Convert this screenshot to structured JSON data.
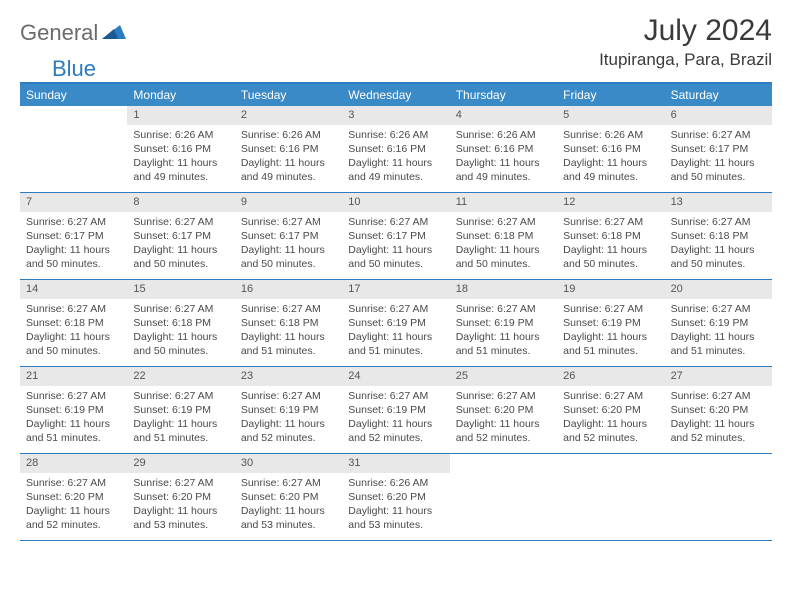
{
  "logo": {
    "text1": "General",
    "text2": "Blue"
  },
  "title": "July 2024",
  "location": "Itupiranga, Para, Brazil",
  "colors": {
    "header_bg": "#3a8ac7",
    "border": "#2d7bc0",
    "daynum_bg": "#e8e8e8",
    "text": "#3f3f3f"
  },
  "weekdays": [
    "Sunday",
    "Monday",
    "Tuesday",
    "Wednesday",
    "Thursday",
    "Friday",
    "Saturday"
  ],
  "weeks": [
    [
      null,
      {
        "n": "1",
        "sr": "Sunrise: 6:26 AM",
        "ss": "Sunset: 6:16 PM",
        "dl": "Daylight: 11 hours and 49 minutes."
      },
      {
        "n": "2",
        "sr": "Sunrise: 6:26 AM",
        "ss": "Sunset: 6:16 PM",
        "dl": "Daylight: 11 hours and 49 minutes."
      },
      {
        "n": "3",
        "sr": "Sunrise: 6:26 AM",
        "ss": "Sunset: 6:16 PM",
        "dl": "Daylight: 11 hours and 49 minutes."
      },
      {
        "n": "4",
        "sr": "Sunrise: 6:26 AM",
        "ss": "Sunset: 6:16 PM",
        "dl": "Daylight: 11 hours and 49 minutes."
      },
      {
        "n": "5",
        "sr": "Sunrise: 6:26 AM",
        "ss": "Sunset: 6:16 PM",
        "dl": "Daylight: 11 hours and 49 minutes."
      },
      {
        "n": "6",
        "sr": "Sunrise: 6:27 AM",
        "ss": "Sunset: 6:17 PM",
        "dl": "Daylight: 11 hours and 50 minutes."
      }
    ],
    [
      {
        "n": "7",
        "sr": "Sunrise: 6:27 AM",
        "ss": "Sunset: 6:17 PM",
        "dl": "Daylight: 11 hours and 50 minutes."
      },
      {
        "n": "8",
        "sr": "Sunrise: 6:27 AM",
        "ss": "Sunset: 6:17 PM",
        "dl": "Daylight: 11 hours and 50 minutes."
      },
      {
        "n": "9",
        "sr": "Sunrise: 6:27 AM",
        "ss": "Sunset: 6:17 PM",
        "dl": "Daylight: 11 hours and 50 minutes."
      },
      {
        "n": "10",
        "sr": "Sunrise: 6:27 AM",
        "ss": "Sunset: 6:17 PM",
        "dl": "Daylight: 11 hours and 50 minutes."
      },
      {
        "n": "11",
        "sr": "Sunrise: 6:27 AM",
        "ss": "Sunset: 6:18 PM",
        "dl": "Daylight: 11 hours and 50 minutes."
      },
      {
        "n": "12",
        "sr": "Sunrise: 6:27 AM",
        "ss": "Sunset: 6:18 PM",
        "dl": "Daylight: 11 hours and 50 minutes."
      },
      {
        "n": "13",
        "sr": "Sunrise: 6:27 AM",
        "ss": "Sunset: 6:18 PM",
        "dl": "Daylight: 11 hours and 50 minutes."
      }
    ],
    [
      {
        "n": "14",
        "sr": "Sunrise: 6:27 AM",
        "ss": "Sunset: 6:18 PM",
        "dl": "Daylight: 11 hours and 50 minutes."
      },
      {
        "n": "15",
        "sr": "Sunrise: 6:27 AM",
        "ss": "Sunset: 6:18 PM",
        "dl": "Daylight: 11 hours and 50 minutes."
      },
      {
        "n": "16",
        "sr": "Sunrise: 6:27 AM",
        "ss": "Sunset: 6:18 PM",
        "dl": "Daylight: 11 hours and 51 minutes."
      },
      {
        "n": "17",
        "sr": "Sunrise: 6:27 AM",
        "ss": "Sunset: 6:19 PM",
        "dl": "Daylight: 11 hours and 51 minutes."
      },
      {
        "n": "18",
        "sr": "Sunrise: 6:27 AM",
        "ss": "Sunset: 6:19 PM",
        "dl": "Daylight: 11 hours and 51 minutes."
      },
      {
        "n": "19",
        "sr": "Sunrise: 6:27 AM",
        "ss": "Sunset: 6:19 PM",
        "dl": "Daylight: 11 hours and 51 minutes."
      },
      {
        "n": "20",
        "sr": "Sunrise: 6:27 AM",
        "ss": "Sunset: 6:19 PM",
        "dl": "Daylight: 11 hours and 51 minutes."
      }
    ],
    [
      {
        "n": "21",
        "sr": "Sunrise: 6:27 AM",
        "ss": "Sunset: 6:19 PM",
        "dl": "Daylight: 11 hours and 51 minutes."
      },
      {
        "n": "22",
        "sr": "Sunrise: 6:27 AM",
        "ss": "Sunset: 6:19 PM",
        "dl": "Daylight: 11 hours and 51 minutes."
      },
      {
        "n": "23",
        "sr": "Sunrise: 6:27 AM",
        "ss": "Sunset: 6:19 PM",
        "dl": "Daylight: 11 hours and 52 minutes."
      },
      {
        "n": "24",
        "sr": "Sunrise: 6:27 AM",
        "ss": "Sunset: 6:19 PM",
        "dl": "Daylight: 11 hours and 52 minutes."
      },
      {
        "n": "25",
        "sr": "Sunrise: 6:27 AM",
        "ss": "Sunset: 6:20 PM",
        "dl": "Daylight: 11 hours and 52 minutes."
      },
      {
        "n": "26",
        "sr": "Sunrise: 6:27 AM",
        "ss": "Sunset: 6:20 PM",
        "dl": "Daylight: 11 hours and 52 minutes."
      },
      {
        "n": "27",
        "sr": "Sunrise: 6:27 AM",
        "ss": "Sunset: 6:20 PM",
        "dl": "Daylight: 11 hours and 52 minutes."
      }
    ],
    [
      {
        "n": "28",
        "sr": "Sunrise: 6:27 AM",
        "ss": "Sunset: 6:20 PM",
        "dl": "Daylight: 11 hours and 52 minutes."
      },
      {
        "n": "29",
        "sr": "Sunrise: 6:27 AM",
        "ss": "Sunset: 6:20 PM",
        "dl": "Daylight: 11 hours and 53 minutes."
      },
      {
        "n": "30",
        "sr": "Sunrise: 6:27 AM",
        "ss": "Sunset: 6:20 PM",
        "dl": "Daylight: 11 hours and 53 minutes."
      },
      {
        "n": "31",
        "sr": "Sunrise: 6:26 AM",
        "ss": "Sunset: 6:20 PM",
        "dl": "Daylight: 11 hours and 53 minutes."
      },
      null,
      null,
      null
    ]
  ]
}
